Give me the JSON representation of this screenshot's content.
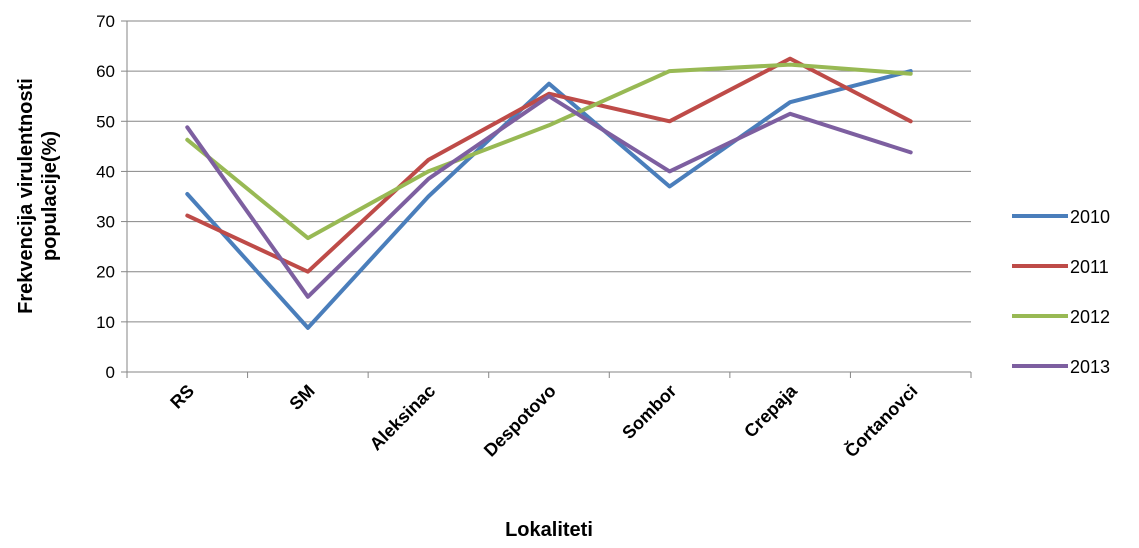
{
  "chart_data": {
    "type": "line",
    "title": "",
    "xlabel": "Lokaliteti",
    "ylabel_lines": [
      "Frekvencija virulentnosti",
      "populacije(%)"
    ],
    "categories": [
      "RS",
      "SM",
      "Aleksinac",
      "Despotovo",
      "Sombor",
      "Crepaja",
      "Čortanovci"
    ],
    "ylim": [
      0,
      70
    ],
    "yticks": [
      0,
      10,
      20,
      30,
      40,
      50,
      60,
      70
    ],
    "grid": true,
    "legend_position": "right",
    "series": [
      {
        "name": "2010",
        "color": "#4a7ebb",
        "values": [
          35.5,
          8.8,
          35,
          57.5,
          37,
          53.8,
          60
        ]
      },
      {
        "name": "2011",
        "color": "#be4b48",
        "values": [
          31.2,
          20,
          42.3,
          55.5,
          50,
          62.5,
          50
        ]
      },
      {
        "name": "2012",
        "color": "#98b954",
        "values": [
          46.3,
          26.7,
          40,
          49.2,
          60,
          61.3,
          59.5
        ]
      },
      {
        "name": "2013",
        "color": "#7d5fa0",
        "values": [
          48.8,
          15,
          38.5,
          55,
          40,
          51.5,
          43.8
        ]
      }
    ]
  }
}
